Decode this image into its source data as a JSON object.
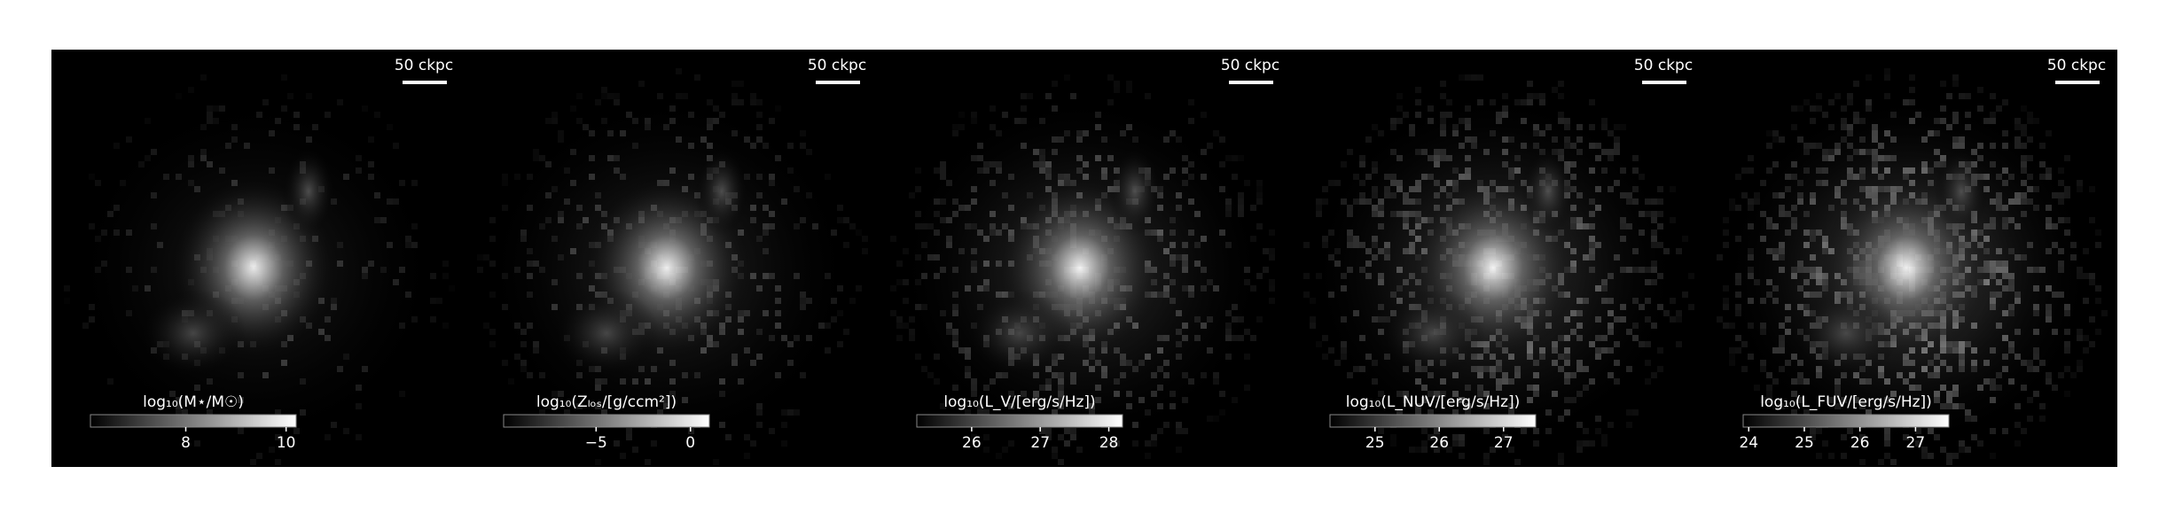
{
  "chart_data": [
    {
      "type": "image",
      "scale_bar": "50 ckpc",
      "colorbar_label": "log₁₀(M⋆/M☉)",
      "clim": [
        6.1,
        10.2
      ],
      "cticks": [
        8,
        10
      ]
    },
    {
      "type": "image",
      "scale_bar": "50 ckpc",
      "colorbar_label": "log₁₀(Zₗₒₛ/[g/ccm²])",
      "clim": [
        -9.9,
        1.0
      ],
      "cticks": [
        {
          "value": -5,
          "label": "−5"
        },
        0
      ]
    },
    {
      "type": "image",
      "scale_bar": "50 ckpc",
      "colorbar_label": "log₁₀(L_V/[erg/s/Hz])",
      "clim": [
        25.2,
        28.2
      ],
      "cticks": [
        26,
        27,
        28
      ]
    },
    {
      "type": "image",
      "scale_bar": "50 ckpc",
      "colorbar_label": "log₁₀(L_NUV/[erg/s/Hz])",
      "clim": [
        24.3,
        27.5
      ],
      "cticks": [
        25,
        26,
        27
      ]
    },
    {
      "type": "image",
      "scale_bar": "50 ckpc",
      "colorbar_label": "log₁₀(L_FUV/[erg/s/Hz])",
      "clim": [
        23.9,
        27.6
      ],
      "cticks": [
        24,
        25,
        26,
        27
      ]
    }
  ]
}
